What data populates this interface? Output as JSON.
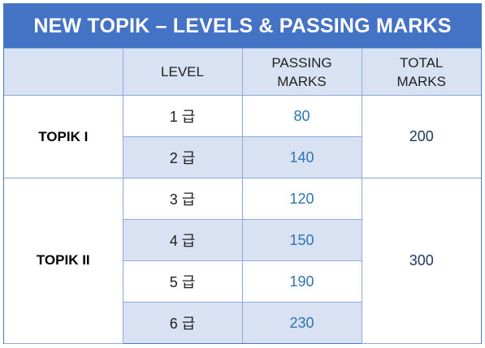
{
  "title": "NEW TOPIK – LEVELS & PASSING MARKS",
  "headers": {
    "group": "",
    "level": "LEVEL",
    "passing_line1": "PASSING",
    "passing_line2": "MARKS",
    "total_line1": "TOTAL",
    "total_line2": "MARKS"
  },
  "groups": [
    {
      "name": "TOPIK I",
      "total": "200",
      "rows": [
        {
          "level": "1 급",
          "marks": "80"
        },
        {
          "level": "2 급",
          "marks": "140"
        }
      ]
    },
    {
      "name": "TOPIK II",
      "total": "300",
      "rows": [
        {
          "level": "3 급",
          "marks": "120"
        },
        {
          "level": "4 급",
          "marks": "150"
        },
        {
          "level": "5 급",
          "marks": "190"
        },
        {
          "level": "6 급",
          "marks": "230"
        }
      ]
    }
  ],
  "colors": {
    "title_bg": "#4472c4",
    "header_bg": "#d9e2f3",
    "marks_text": "#2e74b5",
    "total_text": "#1f3864"
  }
}
